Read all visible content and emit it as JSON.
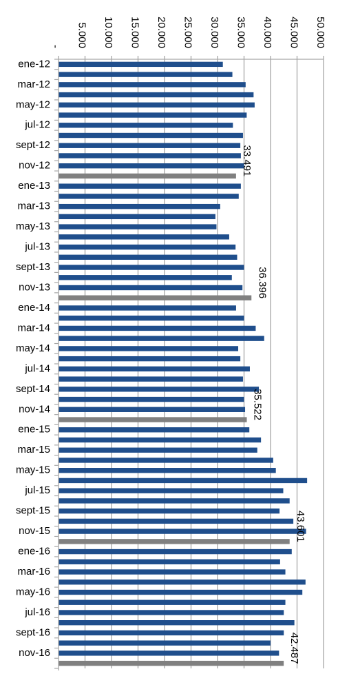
{
  "chart_data": {
    "type": "bar",
    "orientation": "horizontal",
    "xlim": [
      0,
      50000
    ],
    "ticks": [
      {
        "value": 0,
        "label": "-"
      },
      {
        "value": 5000,
        "label": "5.000"
      },
      {
        "value": 10000,
        "label": "10.000"
      },
      {
        "value": 15000,
        "label": "15.000"
      },
      {
        "value": 20000,
        "label": "20.000"
      },
      {
        "value": 25000,
        "label": "25.000"
      },
      {
        "value": 30000,
        "label": "30.000"
      },
      {
        "value": 35000,
        "label": "35.000"
      },
      {
        "value": 40000,
        "label": "40.000"
      },
      {
        "value": 45000,
        "label": "45.000"
      },
      {
        "value": 50000,
        "label": "50.000"
      }
    ],
    "grid": true,
    "colors": {
      "monthly": "#1f4e8c",
      "average": "#808080",
      "grid": "#a6a6a6"
    },
    "categories": [
      {
        "label": "ene-12",
        "value": 31000,
        "kind": "month"
      },
      {
        "label": "",
        "value": 32800,
        "kind": "month"
      },
      {
        "label": "mar-12",
        "value": 35300,
        "kind": "month"
      },
      {
        "label": "",
        "value": 36800,
        "kind": "month"
      },
      {
        "label": "may-12",
        "value": 37000,
        "kind": "month"
      },
      {
        "label": "",
        "value": 35500,
        "kind": "month"
      },
      {
        "label": "jul-12",
        "value": 32900,
        "kind": "month"
      },
      {
        "label": "",
        "value": 34800,
        "kind": "month"
      },
      {
        "label": "sept-12",
        "value": 34300,
        "kind": "month"
      },
      {
        "label": "",
        "value": 34400,
        "kind": "month"
      },
      {
        "label": "nov-12",
        "value": 35000,
        "kind": "month"
      },
      {
        "label": "",
        "value": 33491,
        "kind": "average",
        "data_label": "33.491"
      },
      {
        "label": "ene-13",
        "value": 34400,
        "kind": "month"
      },
      {
        "label": "",
        "value": 34000,
        "kind": "month"
      },
      {
        "label": "mar-13",
        "value": 30500,
        "kind": "month"
      },
      {
        "label": "",
        "value": 29600,
        "kind": "month"
      },
      {
        "label": "may-13",
        "value": 29800,
        "kind": "month"
      },
      {
        "label": "",
        "value": 32200,
        "kind": "month"
      },
      {
        "label": "jul-13",
        "value": 33400,
        "kind": "month"
      },
      {
        "label": "",
        "value": 33700,
        "kind": "month"
      },
      {
        "label": "sept-13",
        "value": 35000,
        "kind": "month"
      },
      {
        "label": "",
        "value": 32700,
        "kind": "month"
      },
      {
        "label": "nov-13",
        "value": 34700,
        "kind": "month"
      },
      {
        "label": "",
        "value": 36396,
        "kind": "average",
        "data_label": "36.396"
      },
      {
        "label": "ene-14",
        "value": 33500,
        "kind": "month"
      },
      {
        "label": "",
        "value": 35000,
        "kind": "month"
      },
      {
        "label": "mar-14",
        "value": 37200,
        "kind": "month"
      },
      {
        "label": "",
        "value": 38800,
        "kind": "month"
      },
      {
        "label": "may-14",
        "value": 33900,
        "kind": "month"
      },
      {
        "label": "",
        "value": 34300,
        "kind": "month"
      },
      {
        "label": "jul-14",
        "value": 36100,
        "kind": "month"
      },
      {
        "label": "",
        "value": 34800,
        "kind": "month"
      },
      {
        "label": "sept-14",
        "value": 37800,
        "kind": "month"
      },
      {
        "label": "",
        "value": 35000,
        "kind": "month"
      },
      {
        "label": "nov-14",
        "value": 35200,
        "kind": "month"
      },
      {
        "label": "",
        "value": 35522,
        "kind": "average",
        "data_label": "35.522"
      },
      {
        "label": "ene-15",
        "value": 36000,
        "kind": "month"
      },
      {
        "label": "",
        "value": 38200,
        "kind": "month"
      },
      {
        "label": "mar-15",
        "value": 37500,
        "kind": "month"
      },
      {
        "label": "",
        "value": 40500,
        "kind": "month"
      },
      {
        "label": "may-15",
        "value": 41000,
        "kind": "month"
      },
      {
        "label": "",
        "value": 46900,
        "kind": "month"
      },
      {
        "label": "jul-15",
        "value": 42400,
        "kind": "month"
      },
      {
        "label": "",
        "value": 43600,
        "kind": "month"
      },
      {
        "label": "sept-15",
        "value": 41700,
        "kind": "month"
      },
      {
        "label": "",
        "value": 44300,
        "kind": "month"
      },
      {
        "label": "nov-15",
        "value": 46700,
        "kind": "month"
      },
      {
        "label": "",
        "value": 43601,
        "kind": "average",
        "data_label": "43.601"
      },
      {
        "label": "ene-16",
        "value": 44000,
        "kind": "month"
      },
      {
        "label": "",
        "value": 41800,
        "kind": "month"
      },
      {
        "label": "mar-16",
        "value": 42800,
        "kind": "month"
      },
      {
        "label": "",
        "value": 46600,
        "kind": "month"
      },
      {
        "label": "may-16",
        "value": 46000,
        "kind": "month"
      },
      {
        "label": "",
        "value": 42800,
        "kind": "month"
      },
      {
        "label": "jul-16",
        "value": 42500,
        "kind": "month"
      },
      {
        "label": "",
        "value": 44500,
        "kind": "month"
      },
      {
        "label": "sept-16",
        "value": 42500,
        "kind": "month"
      },
      {
        "label": "",
        "value": 40000,
        "kind": "month"
      },
      {
        "label": "nov-16",
        "value": 41600,
        "kind": "month"
      },
      {
        "label": "",
        "value": 42487,
        "kind": "average",
        "data_label": "42.487"
      }
    ]
  }
}
